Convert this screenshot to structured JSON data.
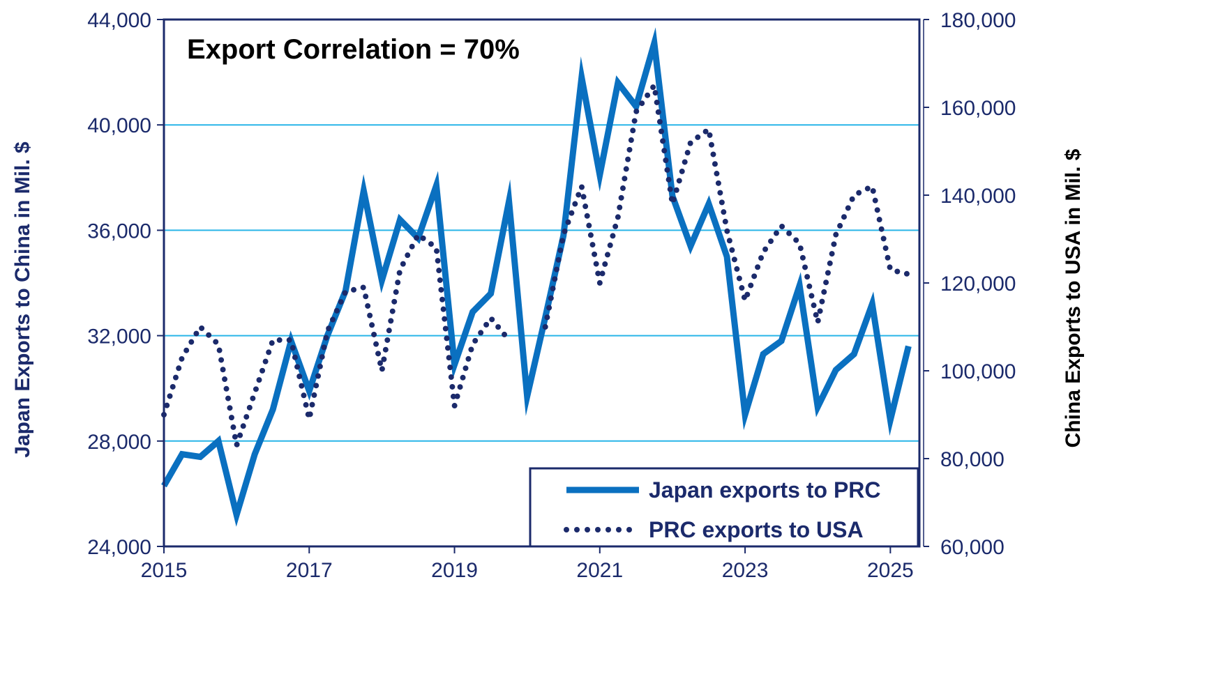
{
  "colors": {
    "japan_series": "#0a70c0",
    "prc_series": "#1b2a6b",
    "gridline": "#29b5e8",
    "axis_text": "#1b2a6b",
    "plot_border": "#1b2a6b",
    "right_title": "#000000"
  },
  "chart_data": {
    "type": "line",
    "annotation": "Export Correlation = 70%",
    "x_ticks": [
      "2015",
      "2017",
      "2019",
      "2021",
      "2023",
      "2025"
    ],
    "x_range": [
      2015.0,
      2025.4
    ],
    "y_left": {
      "label": "Japan Exports to China in Mil. $",
      "range": [
        24000,
        44000
      ],
      "ticks": [
        "24,000",
        "28,000",
        "32,000",
        "36,000",
        "40,000",
        "44,000"
      ],
      "tick_values": [
        24000,
        28000,
        32000,
        36000,
        40000,
        44000
      ]
    },
    "y_right": {
      "label": "China Exports to USA in Mil. $",
      "range": [
        60000,
        180000
      ],
      "ticks": [
        "60,000",
        "80,000",
        "100,000",
        "120,000",
        "140,000",
        "160,000",
        "180,000"
      ],
      "tick_values": [
        60000,
        80000,
        100000,
        120000,
        140000,
        160000,
        180000
      ]
    },
    "grid": true,
    "legend_position": "bottom-right",
    "series": [
      {
        "name": "Japan exports to PRC",
        "axis": "left",
        "style": "solid",
        "x": [
          2015.0,
          2015.25,
          2015.5,
          2015.75,
          2016.0,
          2016.25,
          2016.5,
          2016.75,
          2017.0,
          2017.25,
          2017.5,
          2017.75,
          2018.0,
          2018.25,
          2018.5,
          2018.75,
          2019.0,
          2019.25,
          2019.5,
          2019.75,
          2020.0,
          2020.25,
          2020.5,
          2020.75,
          2021.0,
          2021.25,
          2021.5,
          2021.75,
          2022.0,
          2022.25,
          2022.5,
          2022.75,
          2023.0,
          2023.25,
          2023.5,
          2023.75,
          2024.0,
          2024.25,
          2024.5,
          2024.75,
          2025.0,
          2025.25
        ],
        "values": [
          26300,
          27500,
          27400,
          28000,
          25200,
          27500,
          29200,
          31800,
          29900,
          32000,
          33700,
          37500,
          34100,
          36400,
          35700,
          37700,
          30900,
          32900,
          33600,
          37100,
          29700,
          32700,
          35800,
          41800,
          38100,
          41600,
          40700,
          43100,
          37300,
          35400,
          37000,
          35000,
          29000,
          31300,
          31800,
          33900,
          29300,
          30700,
          31300,
          33200,
          28800,
          31600
        ]
      },
      {
        "name": "PRC exports to USA",
        "axis": "right",
        "style": "dotted",
        "x": [
          2015.0,
          2015.25,
          2015.5,
          2015.75,
          2016.0,
          2016.25,
          2016.5,
          2016.75,
          2017.0,
          2017.25,
          2017.5,
          2017.75,
          2018.0,
          2018.25,
          2018.5,
          2018.75,
          2019.0,
          2019.25,
          2019.5,
          2019.75,
          2020.0,
          2020.25,
          2020.5,
          2020.75,
          2021.0,
          2021.25,
          2021.5,
          2021.75,
          2022.0,
          2022.25,
          2022.5,
          2022.75,
          2023.0,
          2023.25,
          2023.5,
          2023.75,
          2024.0,
          2024.25,
          2024.5,
          2024.75,
          2025.0,
          2025.25
        ],
        "values": [
          90000,
          103000,
          110000,
          106000,
          83000,
          95000,
          107000,
          107000,
          89000,
          109000,
          118000,
          119000,
          100000,
          123000,
          131000,
          128000,
          92000,
          106000,
          112000,
          107000,
          null,
          110000,
          131000,
          142000,
          120000,
          135000,
          159000,
          165000,
          138000,
          152000,
          155000,
          132000,
          116000,
          127000,
          133000,
          129000,
          111000,
          131000,
          140000,
          142000,
          123000,
          122000
        ]
      }
    ]
  }
}
